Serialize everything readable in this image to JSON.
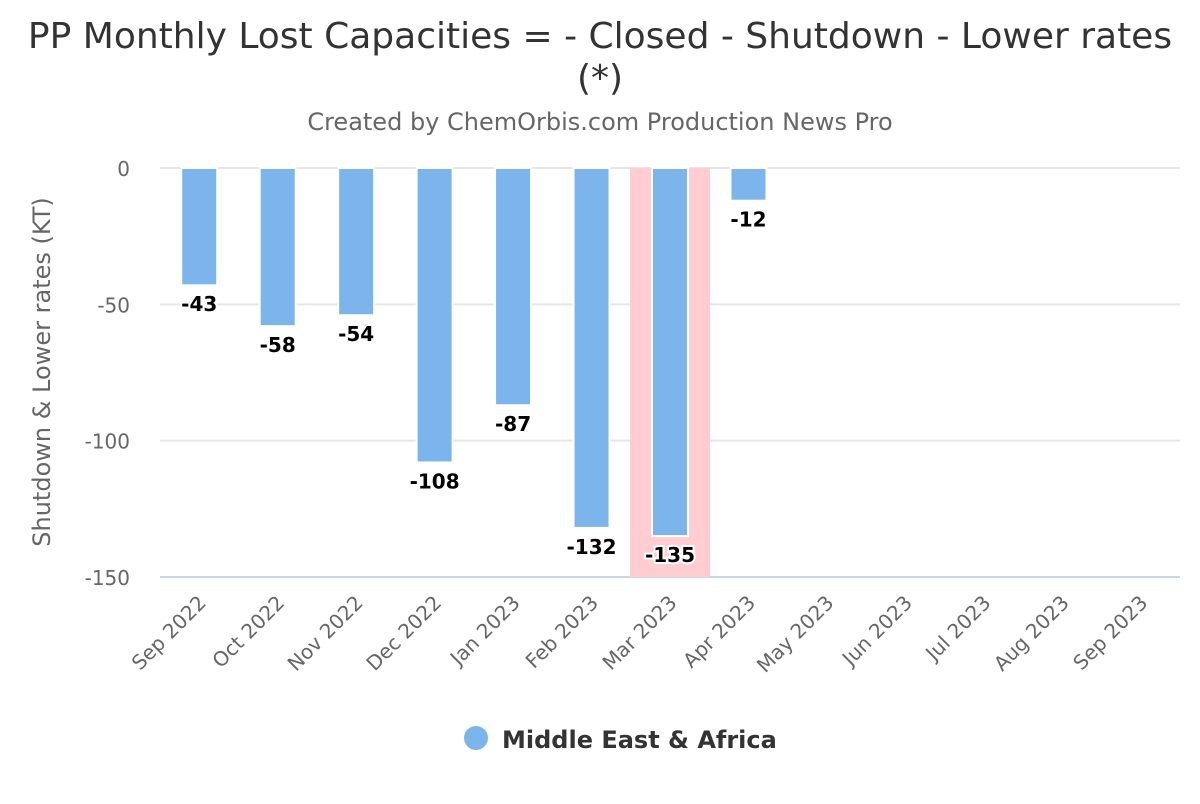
{
  "chart_data": {
    "type": "bar",
    "title_line1": "PP Monthly Lost Capacities = - Closed - Shutdown - Lower rates",
    "title_line2": "(*)",
    "subtitle": "Created by ChemOrbis.com Production News Pro",
    "xlabel": "",
    "ylabel": "Shutdown & Lower rates (KT)",
    "ylim": [
      -150,
      0
    ],
    "yticks": [
      0,
      -50,
      -100,
      -150
    ],
    "categories": [
      "Sep 2022",
      "Oct 2022",
      "Nov 2022",
      "Dec 2022",
      "Jan 2023",
      "Feb 2023",
      "Mar 2023",
      "Apr 2023",
      "May 2023",
      "Jun 2023",
      "Jul 2023",
      "Aug 2023",
      "Sep 2023"
    ],
    "series": [
      {
        "name": "Middle East & Africa",
        "color": "#7cb5ec",
        "values": [
          -43,
          -58,
          -54,
          -108,
          -87,
          -132,
          -135,
          -12,
          null,
          null,
          null,
          null,
          null
        ]
      }
    ],
    "highlight_category": "Mar 2023",
    "highlight_color": "#ffcdd2",
    "grid": true,
    "legend_position": "bottom-center"
  }
}
